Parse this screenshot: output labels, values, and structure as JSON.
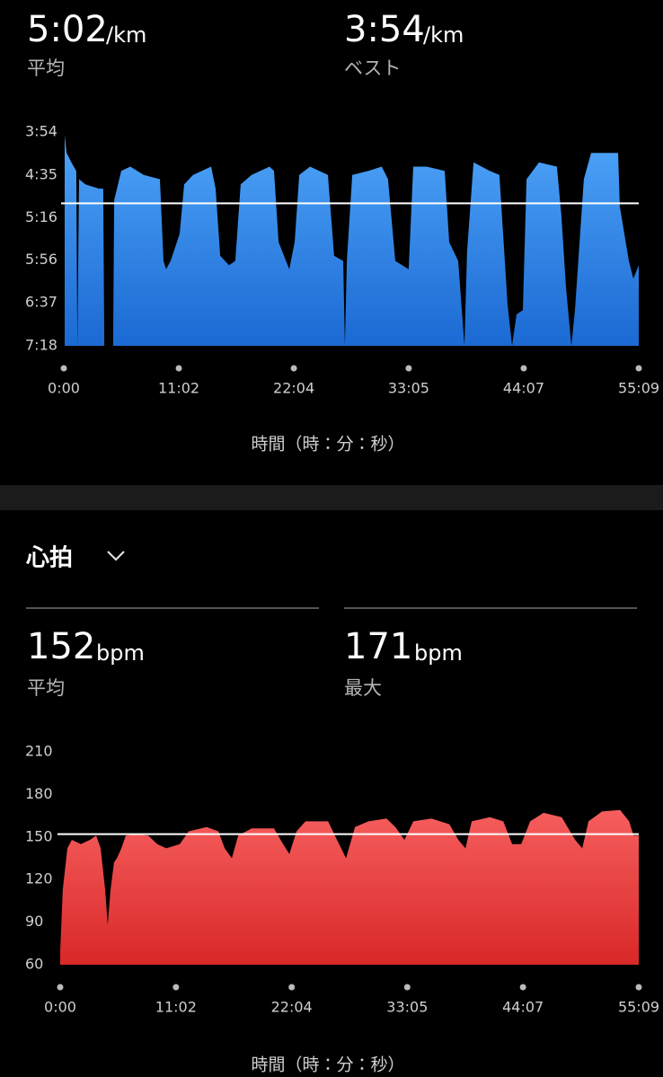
{
  "pace_summary": {
    "unit": "/km",
    "average_label": "平均",
    "best_label": "ベスト"
  },
  "heart_rate_section": {
    "title": "心拍",
    "unit": "bpm",
    "average_label": "平均",
    "max_label": "最大"
  },
  "chart_data": [
    {
      "type": "area",
      "average": {
        "value": 302,
        "label": "5:02"
      },
      "best": {
        "value": 234,
        "label": "3:54"
      },
      "xlabel": "時間（時：分：秒）",
      "colors": [
        "#4ea4f8",
        "#1b69d3"
      ],
      "xlim": [
        0,
        3309
      ],
      "ylim": [
        438,
        234
      ],
      "xticks": [
        {
          "value": 0,
          "label": "0:00"
        },
        {
          "value": 662,
          "label": "11:02"
        },
        {
          "value": 1324,
          "label": "22:04"
        },
        {
          "value": 1985,
          "label": "33:05"
        },
        {
          "value": 2647,
          "label": "44:07"
        },
        {
          "value": 3309,
          "label": "55:09"
        }
      ],
      "yticks": [
        {
          "value": 234,
          "label": "3:54"
        },
        {
          "value": 275,
          "label": "4:35"
        },
        {
          "value": 316,
          "label": "5:16"
        },
        {
          "value": 356,
          "label": "5:56"
        },
        {
          "value": 397,
          "label": "6:37"
        },
        {
          "value": 438,
          "label": "7:18"
        }
      ],
      "x": [
        5,
        16,
        47,
        72,
        78,
        88,
        124,
        202,
        227,
        233,
        284,
        290,
        331,
        383,
        460,
        553,
        574,
        589,
        615,
        667,
        693,
        744,
        848,
        874,
        900,
        951,
        987,
        1018,
        1081,
        1184,
        1210,
        1236,
        1298,
        1329,
        1355,
        1417,
        1520,
        1556,
        1608,
        1618,
        1629,
        1660,
        1753,
        1830,
        1866,
        1908,
        1985,
        2011,
        2089,
        2192,
        2218,
        2270,
        2306,
        2321,
        2358,
        2451,
        2507,
        2554,
        2580,
        2606,
        2642,
        2663,
        2735,
        2838,
        2864,
        2890,
        2921,
        2942,
        2993,
        3035,
        3097,
        3190,
        3200,
        3252,
        3278,
        3309
      ],
      "values": [
        237,
        254,
        264,
        271,
        438,
        279,
        284,
        288,
        288,
        438,
        438,
        299,
        271,
        267,
        275,
        279,
        357,
        365,
        357,
        331,
        284,
        275,
        267,
        288,
        352,
        361,
        357,
        284,
        275,
        267,
        271,
        339,
        365,
        339,
        275,
        267,
        275,
        352,
        357,
        438,
        357,
        275,
        271,
        267,
        279,
        357,
        365,
        267,
        267,
        271,
        339,
        357,
        438,
        348,
        263,
        271,
        275,
        399,
        438,
        408,
        404,
        279,
        263,
        267,
        314,
        382,
        438,
        404,
        279,
        254,
        254,
        254,
        305,
        357,
        374,
        361
      ]
    },
    {
      "type": "area",
      "average": 152,
      "max": 171,
      "xlabel": "時間（時：分：秒）",
      "colors": [
        "#f65e5e",
        "#d92828"
      ],
      "xlim": [
        0,
        3309
      ],
      "ylim": [
        60,
        210
      ],
      "xticks": [
        {
          "value": 0,
          "label": "0:00"
        },
        {
          "value": 662,
          "label": "11:02"
        },
        {
          "value": 1324,
          "label": "22:04"
        },
        {
          "value": 1985,
          "label": "33:05"
        },
        {
          "value": 2647,
          "label": "44:07"
        },
        {
          "value": 3309,
          "label": "55:09"
        }
      ],
      "yticks": [
        60,
        90,
        120,
        150,
        180,
        210
      ],
      "x": [
        0,
        15,
        41,
        67,
        118,
        170,
        206,
        231,
        257,
        272,
        288,
        308,
        324,
        350,
        375,
        427,
        504,
        555,
        607,
        684,
        735,
        838,
        905,
        941,
        982,
        1018,
        1095,
        1223,
        1275,
        1311,
        1352,
        1403,
        1532,
        1583,
        1635,
        1686,
        1763,
        1866,
        1917,
        1969,
        2020,
        2123,
        2226,
        2277,
        2318,
        2354,
        2457,
        2534,
        2585,
        2637,
        2688,
        2765,
        2868,
        2945,
        2986,
        3022,
        3099,
        3202,
        3254,
        3279,
        3309
      ],
      "values": [
        69,
        113,
        142,
        148,
        145,
        148,
        151,
        142,
        113,
        88,
        113,
        132,
        135,
        142,
        151,
        152,
        151,
        145,
        142,
        145,
        154,
        157,
        154,
        142,
        135,
        151,
        156,
        156,
        145,
        138,
        154,
        161,
        161,
        148,
        135,
        157,
        161,
        163,
        157,
        148,
        161,
        163,
        159,
        148,
        142,
        161,
        164,
        161,
        145,
        145,
        161,
        167,
        164,
        148,
        142,
        161,
        168,
        169,
        161,
        151,
        151
      ]
    }
  ]
}
